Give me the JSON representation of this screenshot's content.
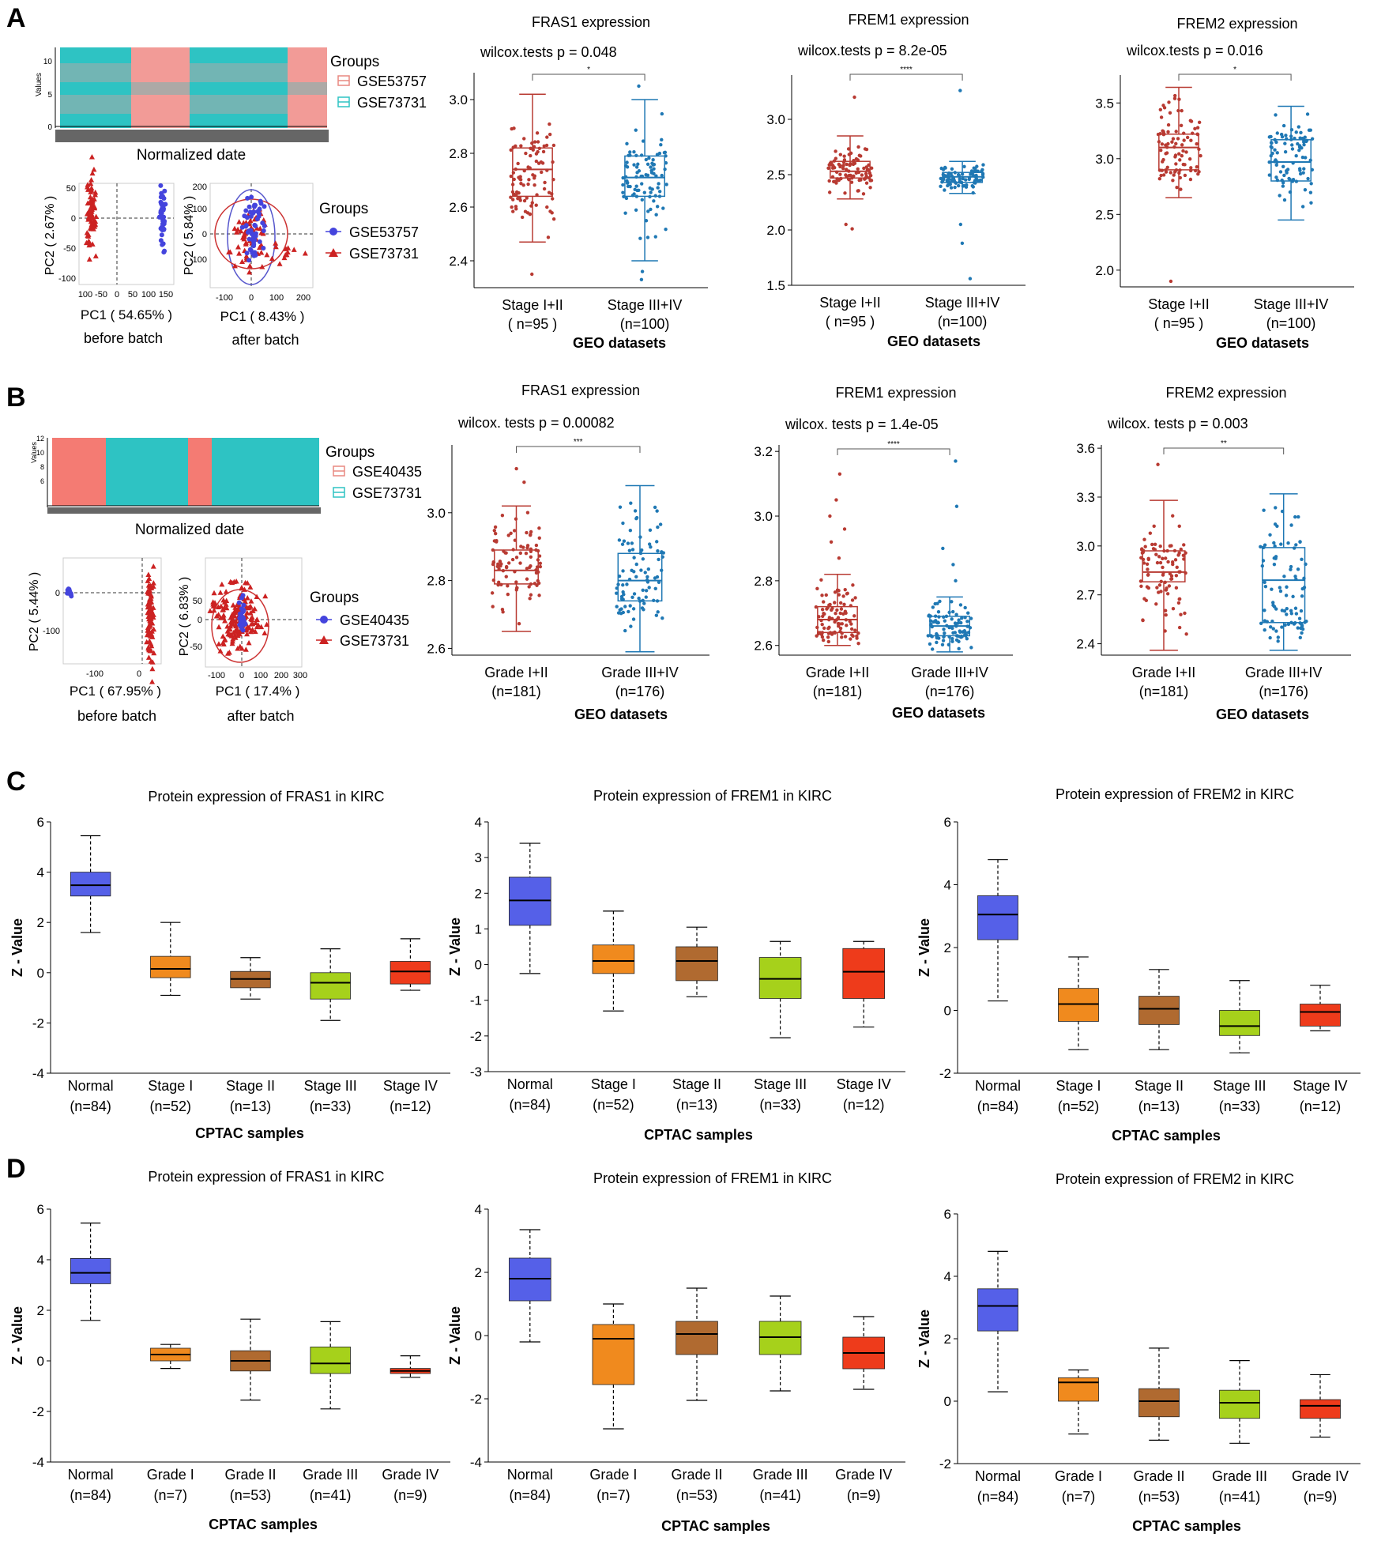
{
  "panel_labels": [
    "A",
    "B",
    "C",
    "D"
  ],
  "colors": {
    "stage_early": "#b83a32",
    "stage_late": "#1f78b4",
    "heat_teal": "#2ec3c3",
    "heat_pink": "#f29b97",
    "pca_blue": "#4444dd",
    "pca_red": "#cc2222",
    "normal": "#5560e8",
    "c1": "#f08a1e",
    "c2": "#b06a30",
    "c3": "#a6d11b",
    "c4": "#ee3b1b"
  },
  "panelA": {
    "heatmap": {
      "title": "Normalized date",
      "ylabel": "Values",
      "yticks": [
        "0",
        "5",
        "10"
      ],
      "legend_title": "Groups",
      "legend": [
        "GSE53757",
        "GSE73731"
      ]
    },
    "pca": {
      "before": {
        "xlabel": "PC1 ( 54.65% )",
        "ylabel": "PC2 ( 2.67% )",
        "caption": "before batch",
        "xticks": [
          "100",
          "-50",
          "0",
          "50",
          "100",
          "150"
        ],
        "yticks": [
          "50",
          "0",
          "-50",
          "-100"
        ]
      },
      "after": {
        "xlabel": "PC1 ( 8.43% )",
        "ylabel": "PC2 ( 5.84% )",
        "caption": "after batch",
        "xticks": [
          "-100",
          "0",
          "100",
          "200"
        ],
        "yticks": [
          "200",
          "100",
          "0",
          "-100"
        ]
      },
      "legend_title": "Groups",
      "legend": [
        "GSE53757",
        "GSE73731"
      ]
    }
  },
  "panelB": {
    "heatmap": {
      "title": "Normalized date",
      "ylabel": "Values",
      "yticks": [
        "6",
        "8",
        "10",
        "12"
      ],
      "legend_title": "Groups",
      "legend": [
        "GSE40435",
        "GSE73731"
      ]
    },
    "pca": {
      "before": {
        "xlabel": "PC1 ( 67.95% )",
        "ylabel": "PC2 ( 5.44% )",
        "caption": "before batch",
        "xticks": [
          "-100",
          "0"
        ],
        "yticks": [
          "0",
          "-100"
        ]
      },
      "after": {
        "xlabel": "PC1 ( 17.4% )",
        "ylabel": "PC2 ( 6.83% )",
        "caption": "after batch",
        "xticks": [
          "-100",
          "0",
          "100",
          "200",
          "300"
        ],
        "yticks": [
          "50",
          "0",
          "-50"
        ]
      },
      "legend_title": "Groups",
      "legend": [
        "GSE40435",
        "GSE73731"
      ]
    }
  },
  "chart_data": [
    {
      "id": "A1",
      "type": "box",
      "title": "FRAS1 expression",
      "stat": "wilcox.tests p = 0.048",
      "sig": "*",
      "xlabel": "GEO datasets",
      "ylim": [
        2.3,
        3.1
      ],
      "yticks": [
        2.4,
        2.6,
        2.8,
        3.0
      ],
      "groups": [
        {
          "label": "Stage I+II",
          "n": "( n=95 )",
          "min": 2.47,
          "q1": 2.64,
          "median": 2.74,
          "q3": 2.82,
          "max": 3.02,
          "outliers": [
            2.35
          ]
        },
        {
          "label": "Stage III+IV",
          "n": "(n=100)",
          "min": 2.4,
          "q1": 2.64,
          "median": 2.71,
          "q3": 2.79,
          "max": 3.0,
          "outliers": [
            2.36,
            2.33,
            3.05
          ]
        }
      ]
    },
    {
      "id": "A2",
      "type": "box",
      "title": "FREM1 expression",
      "stat": "wilcox.tests p = 8.2e-05",
      "sig": "****",
      "xlabel": "GEO datasets",
      "ylim": [
        1.5,
        3.4
      ],
      "yticks": [
        1.5,
        2.0,
        2.5,
        3.0
      ],
      "groups": [
        {
          "label": "Stage I+II",
          "n": "( n=95 )",
          "min": 2.28,
          "q1": 2.47,
          "median": 2.53,
          "q3": 2.62,
          "max": 2.85,
          "outliers": [
            2.01,
            2.05,
            3.2
          ]
        },
        {
          "label": "Stage III+IV",
          "n": "(n=100)",
          "min": 2.33,
          "q1": 2.43,
          "median": 2.48,
          "q3": 2.52,
          "max": 2.62,
          "outliers": [
            1.56,
            1.88,
            2.05,
            3.26
          ]
        }
      ]
    },
    {
      "id": "A3",
      "type": "box",
      "title": "FREM2 expression",
      "stat": "wilcox.tests p = 0.016",
      "sig": "*",
      "xlabel": "GEO datasets",
      "ylim": [
        1.85,
        3.75
      ],
      "yticks": [
        2.0,
        2.5,
        3.0,
        3.5
      ],
      "groups": [
        {
          "label": "Stage I+II",
          "n": "( n=95 )",
          "min": 2.65,
          "q1": 2.9,
          "median": 3.1,
          "q3": 3.22,
          "max": 3.64,
          "outliers": [
            1.9
          ]
        },
        {
          "label": "Stage III+IV",
          "n": "(n=100)",
          "min": 2.45,
          "q1": 2.8,
          "median": 2.97,
          "q3": 3.17,
          "max": 3.47,
          "outliers": []
        }
      ]
    },
    {
      "id": "B1",
      "type": "box",
      "title": "FRAS1 expression",
      "stat": "wilcox. tests p = 0.00082",
      "sig": "***",
      "xlabel": "GEO datasets",
      "ylim": [
        2.58,
        3.2
      ],
      "yticks": [
        2.6,
        2.8,
        3.0
      ],
      "groups": [
        {
          "label": "Grade I+II",
          "n": "(n=181)",
          "min": 2.65,
          "q1": 2.79,
          "median": 2.83,
          "q3": 2.89,
          "max": 3.02,
          "outliers": [
            3.09,
            3.13
          ]
        },
        {
          "label": "Grade III+IV",
          "n": "(n=176)",
          "min": 2.59,
          "q1": 2.74,
          "median": 2.8,
          "q3": 2.88,
          "max": 3.08,
          "outliers": []
        }
      ]
    },
    {
      "id": "B2",
      "type": "box",
      "title": "FREM1 expression",
      "stat": "wilcox. tests p = 1.4e-05",
      "sig": "****",
      "xlabel": "GEO datasets",
      "ylim": [
        2.57,
        3.22
      ],
      "yticks": [
        2.6,
        2.8,
        3.0,
        3.2
      ],
      "groups": [
        {
          "label": "Grade I+II",
          "n": "(n=181)",
          "min": 2.6,
          "q1": 2.64,
          "median": 2.68,
          "q3": 2.72,
          "max": 2.82,
          "outliers": [
            2.87,
            2.92,
            2.96,
            3.0,
            3.05,
            3.13
          ]
        },
        {
          "label": "Grade III+IV",
          "n": "(n=176)",
          "min": 2.58,
          "q1": 2.63,
          "median": 2.66,
          "q3": 2.69,
          "max": 2.75,
          "outliers": [
            2.8,
            2.85,
            2.9,
            3.03,
            3.17
          ]
        }
      ]
    },
    {
      "id": "B3",
      "type": "box",
      "title": "FREM2 expression",
      "stat": "wilcox. tests p = 0.003",
      "sig": "**",
      "xlabel": "GEO datasets",
      "ylim": [
        2.33,
        3.62
      ],
      "yticks": [
        2.4,
        2.7,
        3.0,
        3.3,
        3.6
      ],
      "groups": [
        {
          "label": "Grade I+II",
          "n": "(n=181)",
          "min": 2.36,
          "q1": 2.78,
          "median": 2.84,
          "q3": 2.97,
          "max": 3.28,
          "outliers": [
            3.5
          ]
        },
        {
          "label": "Grade III+IV",
          "n": "(n=176)",
          "min": 2.36,
          "q1": 2.53,
          "median": 2.79,
          "q3": 2.99,
          "max": 3.32,
          "outliers": []
        }
      ]
    },
    {
      "id": "C1",
      "type": "box",
      "title": "Protein expression of FRAS1 in KIRC",
      "xlabel": "CPTAC samples",
      "ylabel": "Z - Value",
      "ylim": [
        -4,
        6
      ],
      "yticks": [
        -4,
        -2,
        0,
        2,
        4,
        6
      ],
      "groups": [
        {
          "label": "Normal",
          "n": "(n=84)",
          "min": 1.6,
          "q1": 3.05,
          "median": 3.48,
          "q3": 4.0,
          "max": 5.45
        },
        {
          "label": "Stage I",
          "n": "(n=52)",
          "min": -0.9,
          "q1": -0.2,
          "median": 0.15,
          "q3": 0.65,
          "max": 2.0
        },
        {
          "label": "Stage II",
          "n": "(n=13)",
          "min": -1.05,
          "q1": -0.6,
          "median": -0.25,
          "q3": 0.05,
          "max": 0.6
        },
        {
          "label": "Stage III",
          "n": "(n=33)",
          "min": -1.9,
          "q1": -1.05,
          "median": -0.4,
          "q3": 0.0,
          "max": 0.95
        },
        {
          "label": "Stage IV",
          "n": "(n=12)",
          "min": -0.7,
          "q1": -0.45,
          "median": 0.05,
          "q3": 0.45,
          "max": 1.35
        }
      ]
    },
    {
      "id": "C2",
      "type": "box",
      "title": "Protein expression of FREM1 in KIRC",
      "xlabel": "CPTAC samples",
      "ylabel": "Z - Value",
      "ylim": [
        -3,
        4
      ],
      "yticks": [
        -3,
        -2,
        -1,
        0,
        1,
        2,
        3,
        4
      ],
      "groups": [
        {
          "label": "Normal",
          "n": "(n=84)",
          "min": -0.25,
          "q1": 1.1,
          "median": 1.8,
          "q3": 2.45,
          "max": 3.4
        },
        {
          "label": "Stage I",
          "n": "(n=52)",
          "min": -1.3,
          "q1": -0.25,
          "median": 0.1,
          "q3": 0.55,
          "max": 1.5
        },
        {
          "label": "Stage II",
          "n": "(n=13)",
          "min": -0.9,
          "q1": -0.45,
          "median": 0.1,
          "q3": 0.5,
          "max": 1.05
        },
        {
          "label": "Stage III",
          "n": "(n=33)",
          "min": -2.05,
          "q1": -0.95,
          "median": -0.4,
          "q3": 0.2,
          "max": 0.65
        },
        {
          "label": "Stage IV",
          "n": "(n=12)",
          "min": -1.75,
          "q1": -0.95,
          "median": -0.2,
          "q3": 0.45,
          "max": 0.65
        }
      ]
    },
    {
      "id": "C3",
      "type": "box",
      "title": "Protein expression of FREM2 in KIRC",
      "xlabel": "CPTAC samples",
      "ylabel": "Z - Value",
      "ylim": [
        -2,
        6
      ],
      "yticks": [
        -2,
        0,
        2,
        4,
        6
      ],
      "groups": [
        {
          "label": "Normal",
          "n": "(n=84)",
          "min": 0.3,
          "q1": 2.25,
          "median": 3.05,
          "q3": 3.65,
          "max": 4.8
        },
        {
          "label": "Stage I",
          "n": "(n=52)",
          "min": -1.25,
          "q1": -0.35,
          "median": 0.2,
          "q3": 0.7,
          "max": 1.7
        },
        {
          "label": "Stage II",
          "n": "(n=13)",
          "min": -1.25,
          "q1": -0.45,
          "median": 0.05,
          "q3": 0.45,
          "max": 1.3
        },
        {
          "label": "Stage III",
          "n": "(n=33)",
          "min": -1.35,
          "q1": -0.8,
          "median": -0.5,
          "q3": 0.0,
          "max": 0.95
        },
        {
          "label": "Stage IV",
          "n": "(n=12)",
          "min": -0.65,
          "q1": -0.5,
          "median": -0.05,
          "q3": 0.2,
          "max": 0.8
        }
      ]
    },
    {
      "id": "D1",
      "type": "box",
      "title": "Protein expression of FRAS1 in KIRC",
      "xlabel": "CPTAC samples",
      "ylabel": "Z - Value",
      "ylim": [
        -4,
        6
      ],
      "yticks": [
        -4,
        -2,
        0,
        2,
        4,
        6
      ],
      "groups": [
        {
          "label": "Normal",
          "n": "(n=84)",
          "min": 1.6,
          "q1": 3.05,
          "median": 3.48,
          "q3": 4.05,
          "max": 5.45
        },
        {
          "label": "Grade I",
          "n": "(n=7)",
          "min": -0.3,
          "q1": 0.0,
          "median": 0.25,
          "q3": 0.5,
          "max": 0.65
        },
        {
          "label": "Grade II",
          "n": "(n=53)",
          "min": -1.55,
          "q1": -0.4,
          "median": 0.0,
          "q3": 0.4,
          "max": 1.65
        },
        {
          "label": "Grade III",
          "n": "(n=41)",
          "min": -1.9,
          "q1": -0.5,
          "median": -0.1,
          "q3": 0.55,
          "max": 1.55
        },
        {
          "label": "Grade IV",
          "n": "(n=9)",
          "min": -0.65,
          "q1": -0.5,
          "median": -0.4,
          "q3": -0.3,
          "max": 0.2
        }
      ]
    },
    {
      "id": "D2",
      "type": "box",
      "title": "Protein expression of FREM1 in KIRC",
      "xlabel": "CPTAC samples",
      "ylabel": "Z - Value",
      "ylim": [
        -4,
        4
      ],
      "yticks": [
        -4,
        -2,
        0,
        2,
        4
      ],
      "groups": [
        {
          "label": "Normal",
          "n": "(n=84)",
          "min": -0.2,
          "q1": 1.1,
          "median": 1.8,
          "q3": 2.45,
          "max": 3.35
        },
        {
          "label": "Grade I",
          "n": "(n=7)",
          "min": -2.95,
          "q1": -1.55,
          "median": -0.1,
          "q3": 0.35,
          "max": 1.0
        },
        {
          "label": "Grade II",
          "n": "(n=53)",
          "min": -2.05,
          "q1": -0.6,
          "median": 0.05,
          "q3": 0.45,
          "max": 1.5
        },
        {
          "label": "Grade III",
          "n": "(n=41)",
          "min": -1.75,
          "q1": -0.6,
          "median": -0.05,
          "q3": 0.45,
          "max": 1.25
        },
        {
          "label": "Grade IV",
          "n": "(n=9)",
          "min": -1.7,
          "q1": -1.05,
          "median": -0.55,
          "q3": -0.05,
          "max": 0.6
        }
      ]
    },
    {
      "id": "D3",
      "type": "box",
      "title": "Protein expression of FREM2 in KIRC",
      "xlabel": "CPTAC samples",
      "ylabel": "Z - Value",
      "ylim": [
        -2,
        6
      ],
      "yticks": [
        -2,
        0,
        2,
        4,
        6
      ],
      "groups": [
        {
          "label": "Normal",
          "n": "(n=84)",
          "min": 0.3,
          "q1": 2.25,
          "median": 3.05,
          "q3": 3.6,
          "max": 4.8
        },
        {
          "label": "Grade I",
          "n": "(n=7)",
          "min": -1.05,
          "q1": 0.0,
          "median": 0.6,
          "q3": 0.75,
          "max": 1.0
        },
        {
          "label": "Grade II",
          "n": "(n=53)",
          "min": -1.25,
          "q1": -0.5,
          "median": 0.0,
          "q3": 0.4,
          "max": 1.7
        },
        {
          "label": "Grade III",
          "n": "(n=41)",
          "min": -1.35,
          "q1": -0.55,
          "median": -0.05,
          "q3": 0.35,
          "max": 1.3
        },
        {
          "label": "Grade IV",
          "n": "(n=9)",
          "min": -1.15,
          "q1": -0.55,
          "median": -0.15,
          "q3": 0.05,
          "max": 0.85
        }
      ]
    }
  ]
}
